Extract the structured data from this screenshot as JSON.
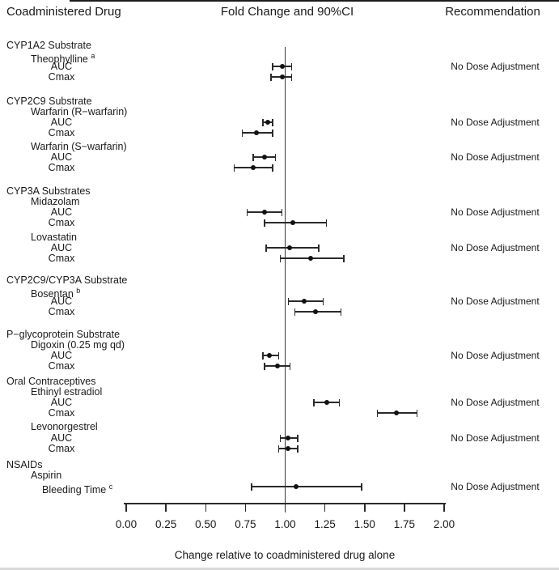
{
  "header": {
    "col_drug": "Coadministered Drug",
    "col_plot": "Fold Change and 90%CI",
    "col_rec": "Recommendation"
  },
  "axis": {
    "label": "Change relative to coadministered drug alone",
    "ticks": [
      "0.00",
      "0.25",
      "0.50",
      "0.75",
      "1.00",
      "1.25",
      "1.50",
      "1.75",
      "2.00"
    ]
  },
  "chart_data": {
    "type": "forest",
    "title": "Fold Change and 90%CI",
    "xlabel": "Change relative to coadministered drug alone",
    "xlim": [
      0,
      2
    ],
    "reference_line": 1.0,
    "ci_level": "90%CI",
    "recommendation_label": "No Dose Adjustment",
    "rows": [
      {
        "kind": "group",
        "label": "CYP1A2 Substrate"
      },
      {
        "kind": "drug",
        "label": "Theophylline",
        "sup": "a",
        "recommendation": "No Dose Adjustment"
      },
      {
        "kind": "metric",
        "label": "AUC",
        "est": 0.98,
        "lo": 0.92,
        "hi": 1.04
      },
      {
        "kind": "metric",
        "label": "Cmax",
        "est": 0.98,
        "lo": 0.91,
        "hi": 1.04
      },
      {
        "kind": "group",
        "label": "CYP2C9 Substrate"
      },
      {
        "kind": "drug",
        "label": "Warfarin (R−warfarin)",
        "recommendation": "No Dose Adjustment"
      },
      {
        "kind": "metric",
        "label": "AUC",
        "est": 0.89,
        "lo": 0.86,
        "hi": 0.92
      },
      {
        "kind": "metric",
        "label": "Cmax",
        "est": 0.82,
        "lo": 0.73,
        "hi": 0.92
      },
      {
        "kind": "drug",
        "label": "Warfarin (S−warfarin)",
        "recommendation": "No Dose Adjustment"
      },
      {
        "kind": "metric",
        "label": "AUC",
        "est": 0.87,
        "lo": 0.8,
        "hi": 0.94
      },
      {
        "kind": "metric",
        "label": "Cmax",
        "est": 0.8,
        "lo": 0.68,
        "hi": 0.92
      },
      {
        "kind": "group",
        "label": "CYP3A Substrates"
      },
      {
        "kind": "drug",
        "label": "Midazolam",
        "recommendation": "No Dose Adjustment"
      },
      {
        "kind": "metric",
        "label": "AUC",
        "est": 0.87,
        "lo": 0.76,
        "hi": 0.98
      },
      {
        "kind": "metric",
        "label": "Cmax",
        "est": 1.05,
        "lo": 0.87,
        "hi": 1.26
      },
      {
        "kind": "drug",
        "label": "Lovastatin",
        "recommendation": "No Dose Adjustment"
      },
      {
        "kind": "metric",
        "label": "AUC",
        "est": 1.03,
        "lo": 0.88,
        "hi": 1.21
      },
      {
        "kind": "metric",
        "label": "Cmax",
        "est": 1.16,
        "lo": 0.97,
        "hi": 1.37
      },
      {
        "kind": "group",
        "label": "CYP2C9/CYP3A Substrate"
      },
      {
        "kind": "drug",
        "label": "Bosentan",
        "sup": "b",
        "recommendation": "No Dose Adjustment"
      },
      {
        "kind": "metric",
        "label": "AUC",
        "est": 1.12,
        "lo": 1.02,
        "hi": 1.24
      },
      {
        "kind": "metric",
        "label": "Cmax",
        "est": 1.19,
        "lo": 1.06,
        "hi": 1.35
      },
      {
        "kind": "group",
        "label": "P−glycoprotein Substrate"
      },
      {
        "kind": "drug",
        "label": "Digoxin (0.25 mg qd)",
        "recommendation": "No Dose Adjustment"
      },
      {
        "kind": "metric",
        "label": "AUC",
        "est": 0.9,
        "lo": 0.86,
        "hi": 0.96
      },
      {
        "kind": "metric",
        "label": "Cmax",
        "est": 0.95,
        "lo": 0.87,
        "hi": 1.03
      },
      {
        "kind": "group",
        "label": "Oral Contraceptives"
      },
      {
        "kind": "drug",
        "label": "Ethinyl estradiol",
        "recommendation": "No Dose Adjustment"
      },
      {
        "kind": "metric",
        "label": "AUC",
        "est": 1.26,
        "lo": 1.18,
        "hi": 1.34
      },
      {
        "kind": "metric",
        "label": "Cmax",
        "est": 1.7,
        "lo": 1.58,
        "hi": 1.83
      },
      {
        "kind": "drug",
        "label": "Levonorgestrel",
        "recommendation": "No Dose Adjustment"
      },
      {
        "kind": "metric",
        "label": "AUC",
        "est": 1.02,
        "lo": 0.97,
        "hi": 1.08
      },
      {
        "kind": "metric",
        "label": "Cmax",
        "est": 1.02,
        "lo": 0.96,
        "hi": 1.08
      },
      {
        "kind": "group",
        "label": "NSAIDs"
      },
      {
        "kind": "drug",
        "label": "Aspirin",
        "recommendation": "No Dose Adjustment"
      },
      {
        "kind": "metric",
        "label": "Bleeding Time",
        "sup": "c",
        "est": 1.07,
        "lo": 0.79,
        "hi": 1.48
      }
    ]
  }
}
